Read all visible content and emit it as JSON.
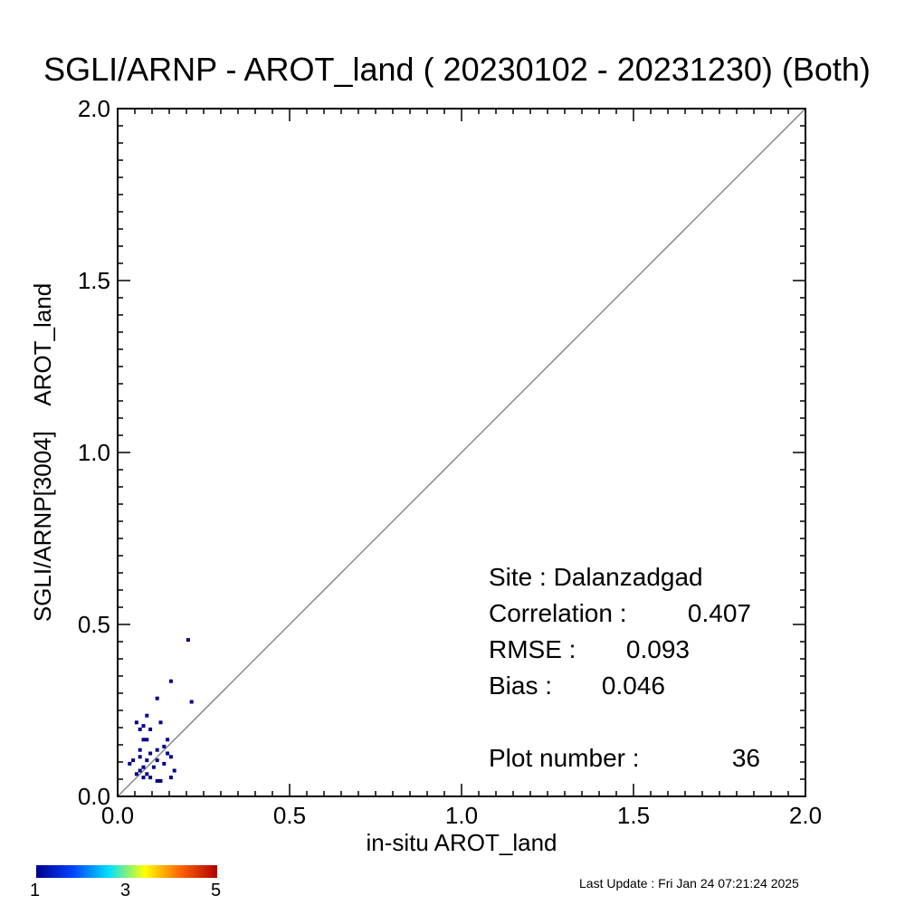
{
  "chart_data": {
    "type": "scatter",
    "title": "SGLI/ARNP - AROT_land ( 20230102 - 20231230) (Both)",
    "xlabel": "in-situ AROT_land",
    "ylabel": "SGLI/ARNP[3004]    AROT_land",
    "xlim": [
      0.0,
      2.0
    ],
    "ylim": [
      0.0,
      2.0
    ],
    "x_ticks": [
      "0.0",
      "0.5",
      "1.0",
      "1.5",
      "2.0"
    ],
    "y_ticks": [
      "0.0",
      "0.5",
      "1.0",
      "1.5",
      "2.0"
    ],
    "reference_line": "1:1",
    "points": [
      {
        "x": 0.205,
        "y": 0.455
      },
      {
        "x": 0.155,
        "y": 0.335
      },
      {
        "x": 0.215,
        "y": 0.275
      },
      {
        "x": 0.115,
        "y": 0.285
      },
      {
        "x": 0.085,
        "y": 0.235
      },
      {
        "x": 0.055,
        "y": 0.215
      },
      {
        "x": 0.125,
        "y": 0.215
      },
      {
        "x": 0.065,
        "y": 0.195
      },
      {
        "x": 0.095,
        "y": 0.195
      },
      {
        "x": 0.075,
        "y": 0.205
      },
      {
        "x": 0.075,
        "y": 0.165
      },
      {
        "x": 0.085,
        "y": 0.165
      },
      {
        "x": 0.145,
        "y": 0.165
      },
      {
        "x": 0.135,
        "y": 0.145
      },
      {
        "x": 0.115,
        "y": 0.135
      },
      {
        "x": 0.065,
        "y": 0.135
      },
      {
        "x": 0.095,
        "y": 0.125
      },
      {
        "x": 0.065,
        "y": 0.115
      },
      {
        "x": 0.155,
        "y": 0.115
      },
      {
        "x": 0.045,
        "y": 0.105
      },
      {
        "x": 0.085,
        "y": 0.105
      },
      {
        "x": 0.115,
        "y": 0.105
      },
      {
        "x": 0.035,
        "y": 0.095
      },
      {
        "x": 0.075,
        "y": 0.085
      },
      {
        "x": 0.165,
        "y": 0.075
      },
      {
        "x": 0.055,
        "y": 0.065
      },
      {
        "x": 0.085,
        "y": 0.065
      },
      {
        "x": 0.075,
        "y": 0.055
      },
      {
        "x": 0.095,
        "y": 0.055
      },
      {
        "x": 0.155,
        "y": 0.055
      },
      {
        "x": 0.125,
        "y": 0.045
      },
      {
        "x": 0.115,
        "y": 0.045
      },
      {
        "x": 0.105,
        "y": 0.085
      },
      {
        "x": 0.135,
        "y": 0.095
      },
      {
        "x": 0.145,
        "y": 0.125
      },
      {
        "x": 0.065,
        "y": 0.075
      }
    ],
    "point_color": "#00008b",
    "colorbar": {
      "min_label": "1",
      "mid_label": "3",
      "max_label": "5",
      "colors": [
        "#00008b",
        "#0040ff",
        "#00e0ff",
        "#ffff00",
        "#ff6000",
        "#b00000"
      ]
    }
  },
  "stats": {
    "site": "Site : Dalanzadgad",
    "correlation_label": "Correlation :",
    "correlation_value": "0.407",
    "rmse_label": "RMSE :",
    "rmse_value": "0.093",
    "bias_label": "Bias :",
    "bias_value": "0.046",
    "plot_number_label": "Plot number :",
    "plot_number_value": "36"
  },
  "footer": "Last Update : Fri Jan 24 07:21:24 2025"
}
